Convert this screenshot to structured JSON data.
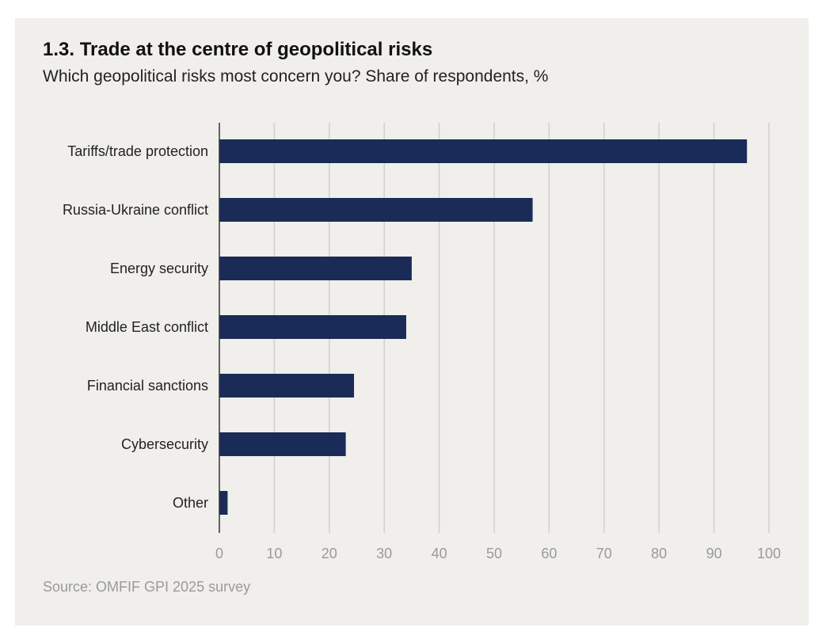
{
  "title": "1.3. Trade at the centre of geopolitical risks",
  "subtitle": "Which geopolitical risks most concern you? Share of respondents, %",
  "source": "Source: OMFIF GPI 2025 survey",
  "colors": {
    "bar": "#1a2b57",
    "grid": "#d2d0cc",
    "axis": "#333333",
    "panel": "#f0efec"
  },
  "chart_data": {
    "type": "bar",
    "orientation": "horizontal",
    "categories": [
      "Tariffs/trade protection",
      "Russia-Ukraine conflict",
      "Energy security",
      "Middle East conflict",
      "Financial sanctions",
      "Cybersecurity",
      "Other"
    ],
    "values": [
      96,
      57,
      35,
      34,
      24.5,
      23,
      1.5
    ],
    "xlim": [
      0,
      100
    ],
    "xticks": [
      0,
      10,
      20,
      30,
      40,
      50,
      60,
      70,
      80,
      90,
      100
    ],
    "grid": true
  }
}
